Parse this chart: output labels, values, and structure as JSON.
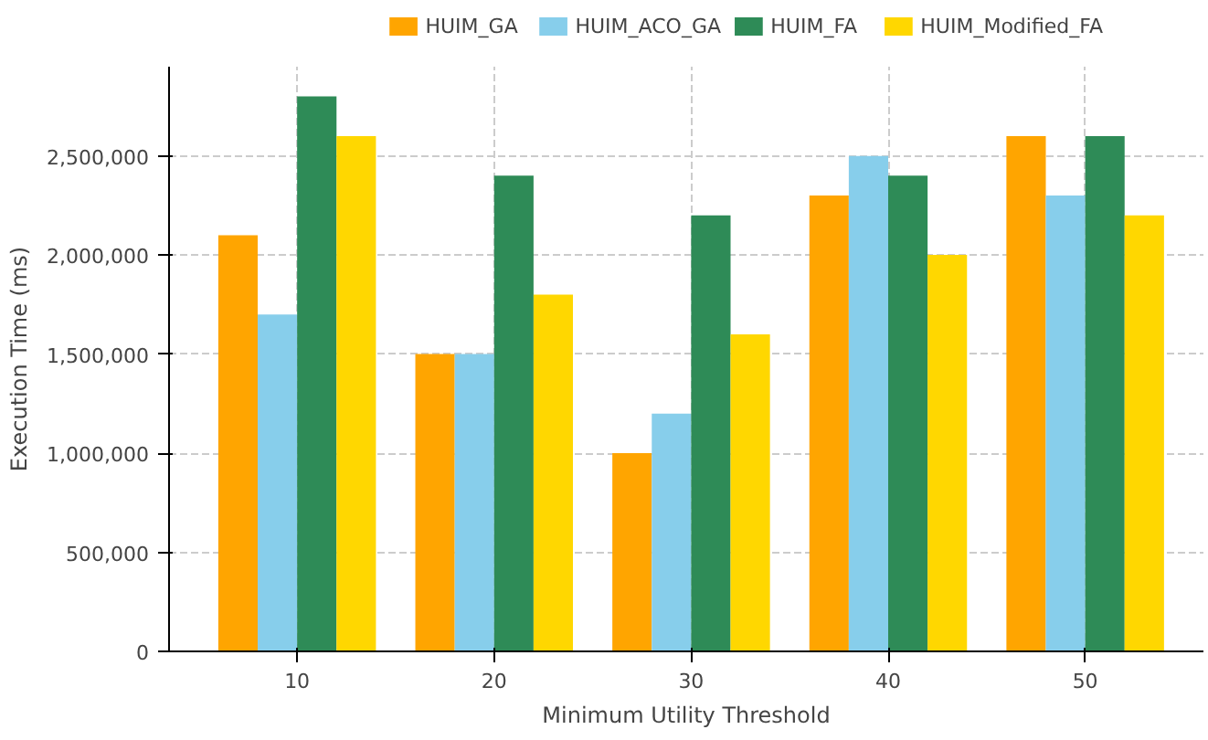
{
  "chart_data": {
    "type": "bar",
    "xlabel": "Minimum Utility Threshold",
    "ylabel": "Execution Time (ms)",
    "categories": [
      "10",
      "20",
      "30",
      "40",
      "50"
    ],
    "series": [
      {
        "name": "HUIM_GA",
        "color": "#ffa500",
        "values": [
          2100000,
          1500000,
          1000000,
          2300000,
          2600000
        ]
      },
      {
        "name": "HUIM_ACO_GA",
        "color": "#87ceeb",
        "values": [
          1700000,
          1500000,
          1200000,
          2500000,
          2300000
        ]
      },
      {
        "name": "HUIM_FA",
        "color": "#2e8b57",
        "values": [
          2800000,
          2400000,
          2200000,
          2400000,
          2600000
        ]
      },
      {
        "name": "HUIM_Modified_FA",
        "color": "#ffd700",
        "values": [
          2600000,
          1800000,
          1600000,
          2000000,
          2200000
        ]
      }
    ],
    "ylim": [
      0,
      2950000
    ],
    "yticks": [
      {
        "value": 0,
        "label": "0"
      },
      {
        "value": 500000,
        "label": "500,000"
      },
      {
        "value": 1000000,
        "label": "1,000,000"
      },
      {
        "value": 1500000,
        "label": "1,500,000"
      },
      {
        "value": 2000000,
        "label": "2,000,000"
      },
      {
        "value": 2500000,
        "label": "2,500,000"
      }
    ],
    "grid": true,
    "legend": "top"
  }
}
